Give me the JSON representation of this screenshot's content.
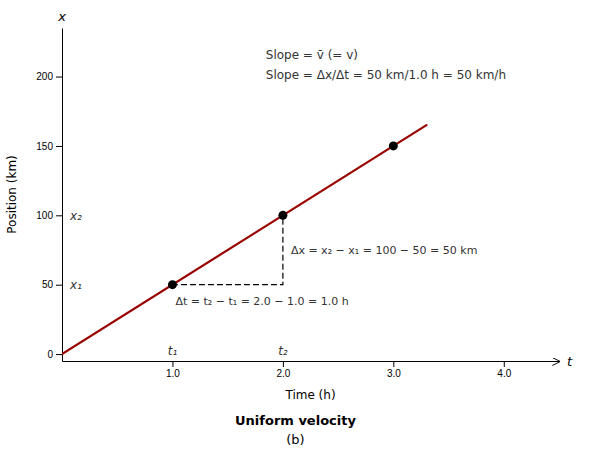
{
  "chart_data": {
    "type": "line",
    "title": "Uniform velocity",
    "subtitle": "(b)",
    "xlabel": "Time (h)",
    "ylabel": "Position (km)",
    "xlim": [
      0,
      4.5
    ],
    "ylim": [
      -5,
      235
    ],
    "xticks": [
      {
        "value": 1.0,
        "label": "1.0"
      },
      {
        "value": 2.0,
        "label": "2.0"
      },
      {
        "value": 3.0,
        "label": "3.0"
      },
      {
        "value": 4.0,
        "label": "4.0"
      }
    ],
    "yticks": [
      0,
      50,
      100,
      150,
      200
    ],
    "grid": false,
    "series": [
      {
        "type": "line",
        "color": "#990000",
        "x": [
          0,
          3.3
        ],
        "values": [
          0,
          165
        ]
      },
      {
        "type": "scatter",
        "marker": "circle",
        "color": "#000000",
        "x": [
          1.0,
          2.0,
          3.0
        ],
        "values": [
          50,
          100,
          150
        ]
      },
      {
        "type": "line",
        "line_style": "dashed",
        "color": "#000000",
        "x": [
          1.0,
          2.0,
          2.0
        ],
        "values": [
          50,
          50,
          100
        ]
      }
    ],
    "annotations": [
      "Slope = v̄ (= v)",
      "Slope = Δx/Δt = 50 km/1.0 h = 50 km/h",
      "Δx = x₂ − x₁ = 100 − 50 = 50 km",
      "Δt = t₂ − t₁ = 2.0 − 1.0 = 1.0 h",
      "x₁",
      "x₂",
      "t₁",
      "t₂",
      "t",
      "x"
    ]
  }
}
